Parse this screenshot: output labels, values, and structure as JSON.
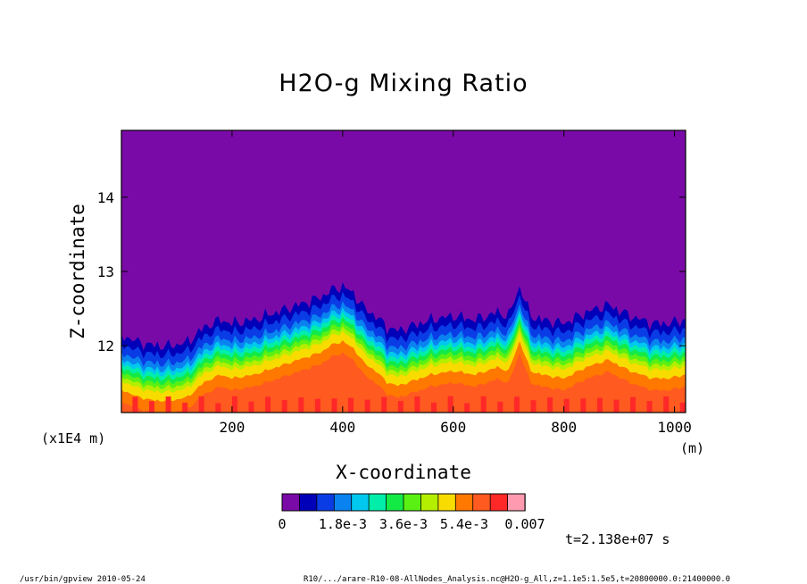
{
  "chart_data": {
    "type": "heatmap",
    "title": "H2O-g Mixing Ratio",
    "xlabel": "X-coordinate",
    "ylabel": "Z-coordinate",
    "x_unit": "(m)",
    "y_unit": "(x1E4 m)",
    "xlim": [
      0,
      1020
    ],
    "ylim": [
      11.1,
      14.9
    ],
    "x_ticks": [
      200,
      400,
      600,
      800,
      1000
    ],
    "y_ticks": [
      12,
      13,
      14
    ],
    "colorbar": {
      "colors": [
        "#7a0aa8",
        "#0000b8",
        "#0a3ce6",
        "#0a82f0",
        "#00c8ee",
        "#00eeaa",
        "#14ea46",
        "#5af014",
        "#b4ee00",
        "#f8dc00",
        "#ff7800",
        "#ff5a20",
        "#ff2828",
        "#ff9ab0"
      ],
      "tick_labels": [
        "0",
        "1.8e-3",
        "3.6e-3",
        "5.4e-3",
        "0.007"
      ]
    },
    "profile": {
      "x": [
        0,
        30,
        60,
        90,
        120,
        150,
        180,
        200,
        240,
        280,
        320,
        360,
        380,
        400,
        420,
        440,
        460,
        480,
        500,
        520,
        560,
        600,
        640,
        660,
        680,
        700,
        720,
        740,
        760,
        800,
        840,
        880,
        920,
        960,
        990,
        1020
      ],
      "top": [
        12.15,
        12.05,
        12.0,
        12.0,
        12.05,
        12.25,
        12.35,
        12.3,
        12.35,
        12.45,
        12.55,
        12.65,
        12.75,
        12.8,
        12.7,
        12.5,
        12.4,
        12.25,
        12.2,
        12.25,
        12.35,
        12.4,
        12.35,
        12.4,
        12.45,
        12.4,
        12.8,
        12.4,
        12.35,
        12.3,
        12.45,
        12.55,
        12.4,
        12.3,
        12.3,
        12.35
      ]
    },
    "time_label": "t=2.138e+07 s"
  },
  "footer": {
    "left": "/usr/bin/gpview  2010-05-24",
    "right": "R10/.../arare-R10-08-AllNodes_Analysis.nc@H2O-g_All,z=1.1e5:1.5e5,t=20800000.0:21400000.0"
  }
}
